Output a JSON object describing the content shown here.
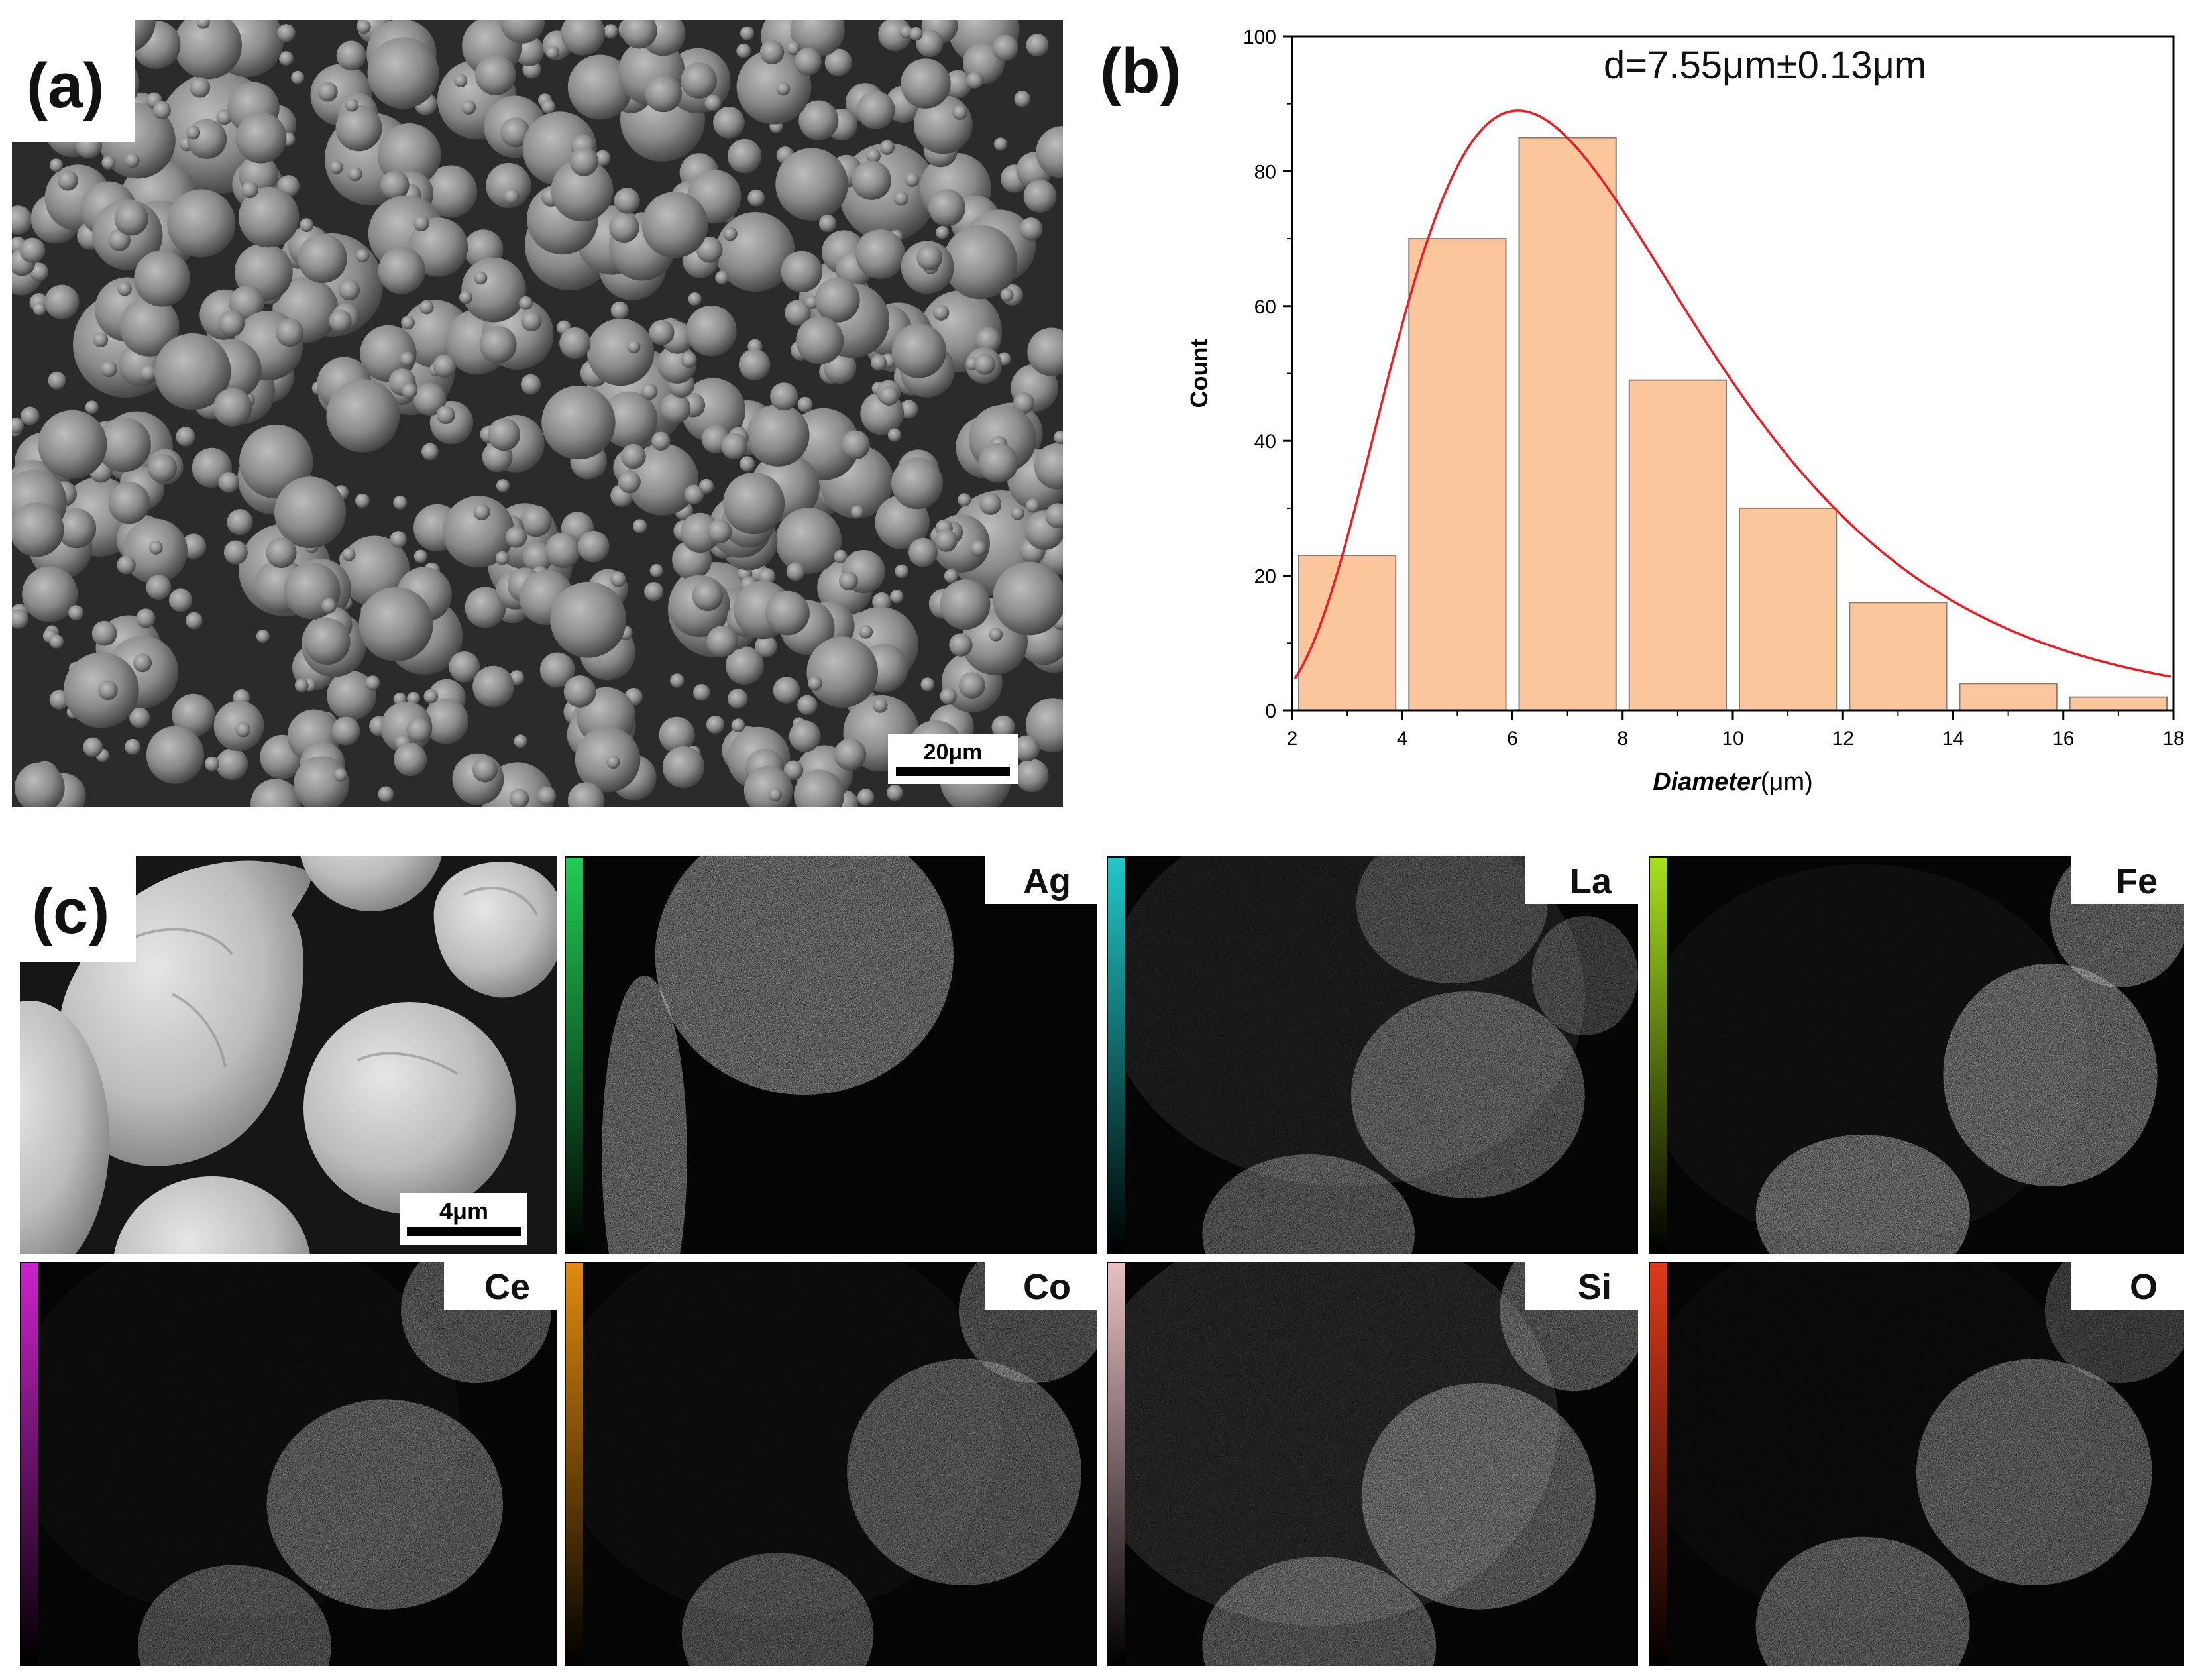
{
  "panels": {
    "a": {
      "label": "(a)",
      "scale_bar": "20μm"
    },
    "b": {
      "label": "(b)",
      "annotation": "d=7.55μm±0.13μm"
    },
    "c": {
      "label": "(c)",
      "scale_bar": "4μm",
      "maps": [
        {
          "element": "Ag",
          "color": "#22cc55"
        },
        {
          "element": "La",
          "color": "#22c8c8"
        },
        {
          "element": "Fe",
          "color": "#a8e020"
        },
        {
          "element": "Ce",
          "color": "#cc22cc"
        },
        {
          "element": "Co",
          "color": "#e08a10"
        },
        {
          "element": "Si",
          "color": "#e8c0c4"
        },
        {
          "element": "O",
          "color": "#e03a1a"
        }
      ]
    }
  },
  "chart_data": {
    "type": "bar",
    "bin_edges": [
      2,
      4,
      6,
      8,
      10,
      12,
      14,
      16,
      18
    ],
    "values": [
      23,
      70,
      85,
      49,
      30,
      16,
      4,
      2
    ],
    "fit_curve": "lognormal",
    "fit_peak": {
      "x": 6.1,
      "y": 89
    },
    "xlabel_italic": "Diameter",
    "xlabel_unit": "(μm)",
    "ylabel": "Count",
    "xlim": [
      2,
      18
    ],
    "ylim": [
      0,
      100
    ],
    "xticks": [
      2,
      4,
      6,
      8,
      10,
      12,
      14,
      16,
      18
    ],
    "yticks": [
      0,
      20,
      40,
      60,
      80,
      100
    ],
    "bar_color": "#fbc69b",
    "curve_color": "#ee1b24",
    "grid": false
  }
}
